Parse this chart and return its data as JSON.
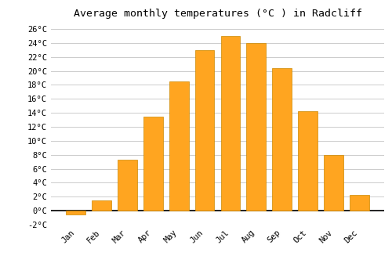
{
  "title": "Average monthly temperatures (°C ) in Radcliff",
  "months": [
    "Jan",
    "Feb",
    "Mar",
    "Apr",
    "May",
    "Jun",
    "Jul",
    "Aug",
    "Sep",
    "Oct",
    "Nov",
    "Dec"
  ],
  "values": [
    -0.5,
    1.5,
    7.3,
    13.5,
    18.5,
    23.0,
    25.0,
    24.0,
    20.4,
    14.2,
    8.0,
    2.3
  ],
  "bar_color": "#FFA520",
  "bar_edge_color": "#CC8800",
  "background_color": "#ffffff",
  "grid_color": "#cccccc",
  "ylim": [
    -2,
    27
  ],
  "yticks": [
    -2,
    0,
    2,
    4,
    6,
    8,
    10,
    12,
    14,
    16,
    18,
    20,
    22,
    24,
    26
  ],
  "ytick_labels": [
    "-2°C",
    "0°C",
    "2°C",
    "4°C",
    "6°C",
    "8°C",
    "10°C",
    "12°C",
    "14°C",
    "16°C",
    "18°C",
    "20°C",
    "22°C",
    "24°C",
    "26°C"
  ],
  "title_fontsize": 9.5,
  "tick_fontsize": 7.5,
  "bar_width": 0.75
}
